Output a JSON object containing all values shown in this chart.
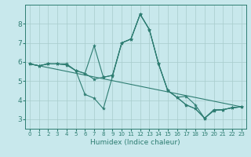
{
  "xlabel": "Humidex (Indice chaleur)",
  "xlim": [
    -0.5,
    23.5
  ],
  "ylim": [
    2.5,
    9.0
  ],
  "yticks": [
    3,
    4,
    5,
    6,
    7,
    8
  ],
  "xticks": [
    0,
    1,
    2,
    3,
    4,
    5,
    6,
    7,
    8,
    9,
    10,
    11,
    12,
    13,
    14,
    15,
    16,
    17,
    18,
    19,
    20,
    21,
    22,
    23
  ],
  "bg_color": "#c8e8ec",
  "line_color": "#2e7d72",
  "grid_color": "#a8cccc",
  "series": [
    {
      "x": [
        0,
        1,
        2,
        3,
        4,
        5,
        6,
        7,
        8,
        9,
        10,
        11,
        12,
        13,
        14,
        15,
        16,
        17,
        18,
        19,
        20,
        21,
        22,
        23
      ],
      "y": [
        5.9,
        5.8,
        5.9,
        5.9,
        5.9,
        5.55,
        4.3,
        4.1,
        3.55,
        5.25,
        7.0,
        7.2,
        8.5,
        7.7,
        5.9,
        4.5,
        4.15,
        4.2,
        3.75,
        3.05,
        3.5,
        3.5,
        3.6,
        3.65
      ]
    },
    {
      "x": [
        0,
        1,
        2,
        3,
        4,
        5,
        6,
        7,
        8,
        9,
        10,
        11,
        12,
        13,
        14,
        15,
        16,
        17,
        18,
        19,
        20,
        21,
        22,
        23
      ],
      "y": [
        5.9,
        5.8,
        5.9,
        5.9,
        5.85,
        5.55,
        5.4,
        6.85,
        5.2,
        5.3,
        7.0,
        7.2,
        8.5,
        7.7,
        5.9,
        4.5,
        4.15,
        3.75,
        3.55,
        3.05,
        3.45,
        3.5,
        3.6,
        3.65
      ]
    },
    {
      "x": [
        0,
        1,
        2,
        3,
        4,
        5,
        6,
        7,
        8,
        9,
        10,
        11,
        12,
        13,
        14,
        15,
        16,
        17,
        18,
        19,
        20,
        21,
        22,
        23
      ],
      "y": [
        5.9,
        5.8,
        5.9,
        5.9,
        5.85,
        5.55,
        5.4,
        5.1,
        5.2,
        5.3,
        7.0,
        7.2,
        8.5,
        7.7,
        5.9,
        4.5,
        4.15,
        3.75,
        3.55,
        3.05,
        3.45,
        3.5,
        3.6,
        3.65
      ]
    },
    {
      "x": [
        0,
        23
      ],
      "y": [
        5.9,
        3.65
      ]
    }
  ]
}
